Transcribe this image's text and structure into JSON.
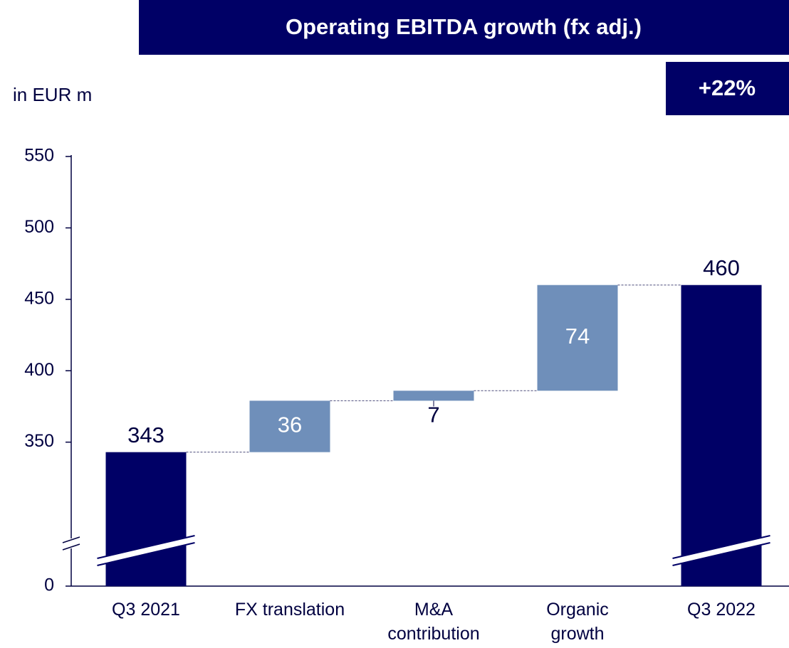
{
  "chart_data": {
    "type": "waterfall",
    "title": "Operating EBITDA growth (fx adj.)",
    "badge": "+22%",
    "ylabel": "in EUR m",
    "categories": [
      "Q3 2021",
      "FX translation",
      "M&A\ncontribution",
      "Organic\ngrowth",
      "Q3 2022"
    ],
    "values": [
      343,
      36,
      7,
      74,
      460
    ],
    "measure": [
      "total",
      "relative",
      "relative",
      "relative",
      "total"
    ],
    "total_color": "#000066",
    "delta_color": "#6f8fba",
    "ylim": [
      0,
      550
    ],
    "yticks": [
      0,
      350,
      400,
      450,
      500,
      550
    ],
    "axis_break": [
      0,
      300
    ],
    "grid": false
  }
}
